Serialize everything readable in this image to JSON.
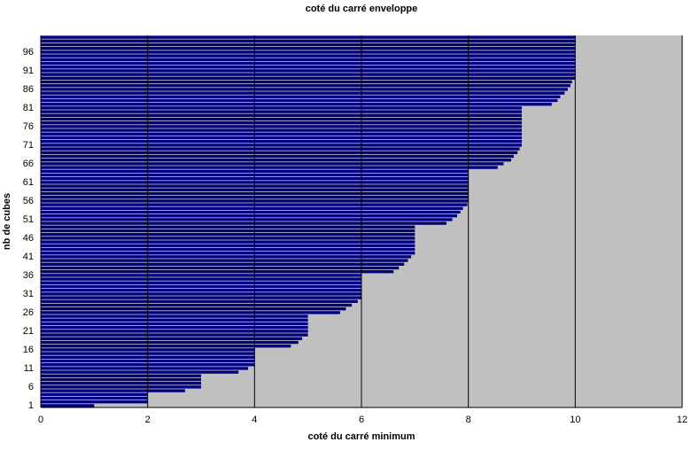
{
  "chart_data": {
    "type": "hbar",
    "title": "coté du carré enveloppe",
    "x_label": "coté du carré minimum",
    "y_label": "nb de cubes",
    "categories": [
      "1",
      null,
      null,
      null,
      null,
      "6",
      null,
      null,
      null,
      null,
      "11",
      null,
      null,
      null,
      null,
      "16",
      null,
      null,
      null,
      null,
      "21",
      null,
      null,
      null,
      null,
      "26",
      null,
      null,
      null,
      null,
      "31",
      null,
      null,
      null,
      null,
      "36",
      null,
      null,
      null,
      null,
      "41",
      null,
      null,
      null,
      null,
      "46",
      null,
      null,
      null,
      null,
      "51",
      null,
      null,
      null,
      null,
      "56",
      null,
      null,
      null,
      null,
      "61",
      null,
      null,
      null,
      null,
      "66",
      null,
      null,
      null,
      null,
      "71",
      null,
      null,
      null,
      null,
      "76",
      null,
      null,
      null,
      null,
      "81",
      null,
      null,
      null,
      null,
      "86",
      null,
      null,
      null,
      null,
      "91",
      null,
      null,
      null,
      null,
      "96",
      null,
      null,
      null,
      null
    ],
    "values": [
      1,
      2,
      2,
      2,
      2.7,
      3,
      3,
      3,
      3,
      3.7,
      3.88,
      4,
      4,
      4,
      4,
      4,
      4.68,
      4.82,
      4.89,
      5,
      5,
      5,
      5,
      5,
      5,
      5.6,
      5.71,
      5.82,
      5.93,
      6,
      6,
      6,
      6,
      6,
      6,
      6,
      6.6,
      6.7,
      6.8,
      6.87,
      6.93,
      7,
      7,
      7,
      7,
      7,
      7,
      7,
      7,
      7.59,
      7.7,
      7.79,
      7.85,
      7.9,
      7.98,
      8,
      8,
      8,
      8,
      8,
      8,
      8,
      8,
      8,
      8.55,
      8.66,
      8.8,
      8.85,
      8.92,
      8.96,
      9,
      9,
      9,
      9,
      9,
      9,
      9,
      9,
      9,
      9,
      9,
      9.56,
      9.67,
      9.72,
      9.8,
      9.86,
      9.91,
      9.94,
      10,
      10,
      10,
      10,
      10,
      10,
      10,
      10,
      10,
      10,
      10,
      10
    ],
    "color": "#000080",
    "background": "#c0c0c0",
    "xlim": [
      0,
      12
    ],
    "xticks": [
      0,
      2,
      4,
      6,
      8,
      10,
      12
    ],
    "grid": true
  }
}
